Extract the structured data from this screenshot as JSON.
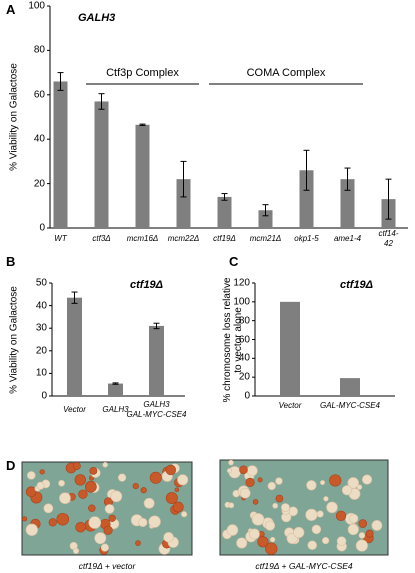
{
  "chart_data": [
    {
      "panel": "A",
      "type": "bar",
      "title": "GALH3",
      "y_label": "% Viability on Galactose",
      "categories": [
        "WT",
        "ctf3Δ",
        "mcm16Δ",
        "mcm22Δ",
        "ctf19Δ",
        "mcm21Δ",
        "okp1-5",
        "ame1-4",
        "ctf14-42"
      ],
      "values": [
        66,
        57,
        46.5,
        22,
        14,
        8,
        26,
        22,
        13
      ],
      "errors": [
        4,
        3.5,
        0.3,
        8,
        1.5,
        2.5,
        9,
        5,
        9
      ],
      "color": "#7f7f7f",
      "ylim": [
        0,
        100
      ],
      "yticks": [
        0,
        20,
        40,
        60,
        80,
        100
      ],
      "annotations": [
        "Ctf3p Complex",
        "COMA Complex"
      ]
    },
    {
      "panel": "B",
      "type": "bar",
      "title": "ctf19Δ",
      "y_label": "% Viability on Galactose",
      "categories": [
        "Vector",
        "GALH3",
        "GALH3\nGAL-MYC-CSE4"
      ],
      "values": [
        43.5,
        5.5,
        31
      ],
      "errors": [
        2.5,
        0.3,
        1.2
      ],
      "color": "#7f7f7f",
      "ylim": [
        0,
        50
      ],
      "yticks": [
        0,
        10,
        20,
        30,
        40,
        50
      ]
    },
    {
      "panel": "C",
      "type": "bar",
      "title": "ctf19Δ",
      "y_label": "% chromosome loss relative\nto vector alone",
      "categories": [
        "Vector",
        "GAL-MYC-CSE4"
      ],
      "values": [
        100,
        19
      ],
      "color": "#7f7f7f",
      "ylim": [
        0,
        120
      ],
      "yticks": [
        0,
        20,
        40,
        60,
        80,
        100,
        120
      ]
    }
  ],
  "panel_d": {
    "label": "D",
    "images": [
      {
        "caption": "ctf19Δ + vector"
      },
      {
        "caption": "ctf19Δ + GAL-MYC-CSE4"
      }
    ]
  }
}
